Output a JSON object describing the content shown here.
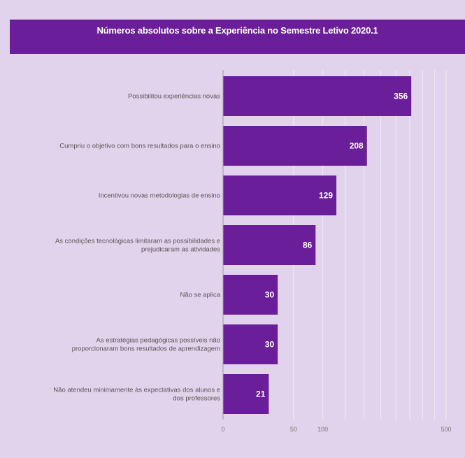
{
  "chart_data": {
    "type": "bar",
    "orientation": "horizontal",
    "title": "Números absolutos sobre a Experiência no Semestre Letivo 2020.1",
    "categories": [
      [
        "Possibilitou experiências novas"
      ],
      [
        "Cumpriu o objetivo com bons resultados para o ensino"
      ],
      [
        "Incentivou novas metodologias de ensino"
      ],
      [
        "As condições tecnológicas limitaram as possibilidades e",
        "prejudicaram as atividades"
      ],
      [
        "Não se aplica"
      ],
      [
        "As estratégias pedagógicas possíveis não",
        "proporcionaram bons resultados de aprendizagem"
      ],
      [
        "Não atendeu minimamente às expectativas dos alunos e",
        "dos professores"
      ]
    ],
    "values": [
      356,
      208,
      129,
      86,
      30,
      30,
      21
    ],
    "x_ticks": [
      {
        "value": 0,
        "label": "0"
      },
      {
        "value": 50,
        "label": "50"
      },
      {
        "value": 100,
        "label": "100"
      },
      {
        "value": 500,
        "label": "500"
      }
    ],
    "xlim": [
      0,
      500
    ],
    "x_scale": "sqrt",
    "grid": true,
    "bar_color": "#6a1e9a"
  }
}
